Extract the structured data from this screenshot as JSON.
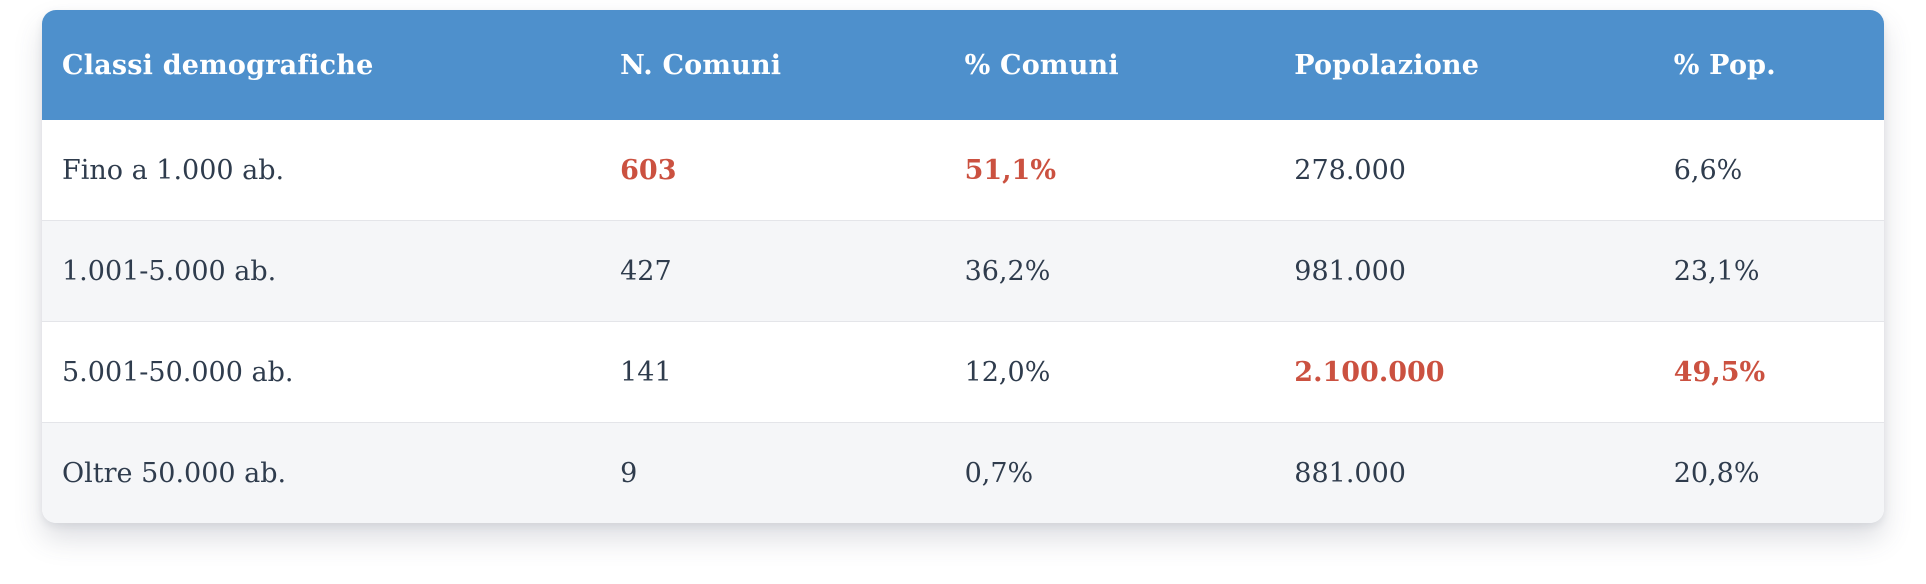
{
  "colors": {
    "header_bg": "#4e90cc",
    "header_text": "#ffffff",
    "body_text": "#2f3c4d",
    "accent_red": "#cb5140",
    "row_alt_bg": "#f5f6f8",
    "row_bg": "#ffffff",
    "divider": "#e4e5e9",
    "page_bg": "#ffffff"
  },
  "table": {
    "columns": [
      "Classi demografiche",
      "N. Comuni",
      "% Comuni",
      "Popolazione",
      "% Pop."
    ],
    "rows": [
      {
        "cells": [
          "Fino a 1.000 ab.",
          "603",
          "51,1%",
          "278.000",
          "6,6%"
        ],
        "highlight": [
          1,
          2
        ]
      },
      {
        "cells": [
          "1.001-5.000 ab.",
          "427",
          "36,2%",
          "981.000",
          "23,1%"
        ],
        "highlight": []
      },
      {
        "cells": [
          "5.001-50.000 ab.",
          "141",
          "12,0%",
          "2.100.000",
          "49,5%"
        ],
        "highlight": [
          3,
          4
        ]
      },
      {
        "cells": [
          "Oltre 50.000 ab.",
          "9",
          "0,7%",
          "881.000",
          "20,8%"
        ],
        "highlight": []
      }
    ]
  },
  "chart_data": {
    "type": "table",
    "title": "",
    "columns": [
      "Classi demografiche",
      "N. Comuni",
      "% Comuni",
      "Popolazione",
      "% Pop."
    ],
    "rows": [
      [
        "Fino a 1.000 ab.",
        "603",
        "51,1%",
        "278.000",
        "6,6%"
      ],
      [
        "1.001-5.000 ab.",
        "427",
        "36,2%",
        "981.000",
        "23,1%"
      ],
      [
        "5.001-50.000 ab.",
        "141",
        "12,0%",
        "2.100.000",
        "49,5%"
      ],
      [
        "Oltre 50.000 ab.",
        "9",
        "0,7%",
        "881.000",
        "20,8%"
      ]
    ],
    "highlighted_cells": [
      {
        "row": 0,
        "col": 1,
        "value": "603"
      },
      {
        "row": 0,
        "col": 2,
        "value": "51,1%"
      },
      {
        "row": 2,
        "col": 3,
        "value": "2.100.000"
      },
      {
        "row": 2,
        "col": 4,
        "value": "49,5%"
      }
    ],
    "layout_hints": {
      "header_background": "#4e90cc",
      "alternating_row_stripes": true,
      "highlight_color": "#cb5140"
    }
  }
}
